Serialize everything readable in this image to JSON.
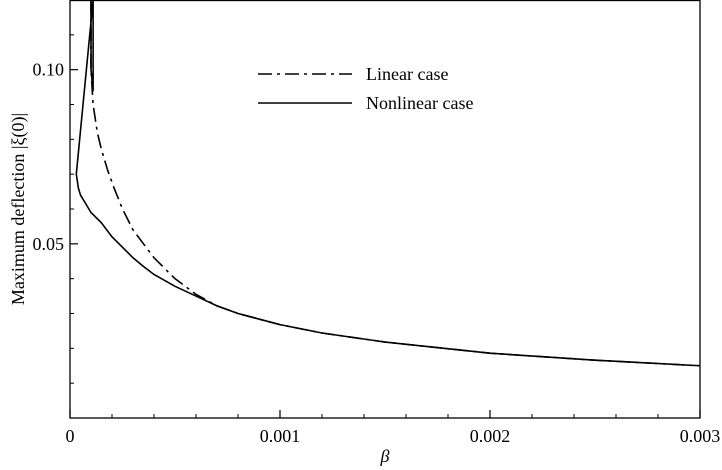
{
  "chart_data": {
    "type": "line",
    "title": "",
    "xlabel": "β",
    "ylabel": "Maximum deflection |ξ(0)|",
    "xlim": [
      0,
      0.003
    ],
    "ylim": [
      0.0,
      0.12
    ],
    "x_ticks": [
      {
        "value": 0,
        "label": "0"
      },
      {
        "value": 0.001,
        "label": "0.001"
      },
      {
        "value": 0.002,
        "label": "0.002"
      },
      {
        "value": 0.003,
        "label": "0.003"
      }
    ],
    "y_ticks": [
      {
        "value": 0.05,
        "label": "0.05"
      },
      {
        "value": 0.1,
        "label": "0.10"
      }
    ],
    "grid": false,
    "legend_position": "top-center",
    "series": [
      {
        "name": "Linear case",
        "style": "dash-dot",
        "color": "#000000",
        "points": [
          [
            0.0001,
            0.12
          ],
          [
            0.0001,
            0.1
          ],
          [
            0.00011,
            0.09
          ],
          [
            0.00013,
            0.082
          ],
          [
            0.00015,
            0.077
          ],
          [
            0.00018,
            0.071
          ],
          [
            0.00021,
            0.066
          ],
          [
            0.00025,
            0.06
          ],
          [
            0.0003,
            0.054
          ],
          [
            0.00035,
            0.05
          ],
          [
            0.0004,
            0.046
          ],
          [
            0.00045,
            0.043
          ],
          [
            0.0005,
            0.04
          ],
          [
            0.0006,
            0.0355
          ],
          [
            0.0007,
            0.0322
          ],
          [
            0.0008,
            0.03
          ],
          [
            0.001,
            0.0268
          ],
          [
            0.0012,
            0.0244
          ],
          [
            0.0015,
            0.0218
          ],
          [
            0.002,
            0.0186
          ],
          [
            0.0025,
            0.0166
          ],
          [
            0.003,
            0.015
          ]
        ]
      },
      {
        "name": "Nonlinear case",
        "style": "solid",
        "color": "#000000",
        "points": [
          [
            0.0001,
            0.12
          ],
          [
            0.0001,
            0.1
          ],
          [
            0.00011,
            0.094
          ],
          [
            0.00011,
            0.12
          ],
          [
            3e-05,
            0.07
          ],
          [
            4e-05,
            0.066
          ],
          [
            5e-05,
            0.064
          ],
          [
            8e-05,
            0.061
          ],
          [
            0.0001,
            0.059
          ],
          [
            0.00015,
            0.056
          ],
          [
            0.0002,
            0.052
          ],
          [
            0.00025,
            0.049
          ],
          [
            0.0003,
            0.046
          ],
          [
            0.00035,
            0.0435
          ],
          [
            0.0004,
            0.0412
          ],
          [
            0.0005,
            0.0378
          ],
          [
            0.0006,
            0.035
          ],
          [
            0.0007,
            0.0322
          ],
          [
            0.0008,
            0.03
          ],
          [
            0.001,
            0.0268
          ],
          [
            0.0012,
            0.0244
          ],
          [
            0.0015,
            0.0218
          ],
          [
            0.002,
            0.0186
          ],
          [
            0.0025,
            0.0166
          ],
          [
            0.003,
            0.015
          ]
        ]
      }
    ]
  }
}
